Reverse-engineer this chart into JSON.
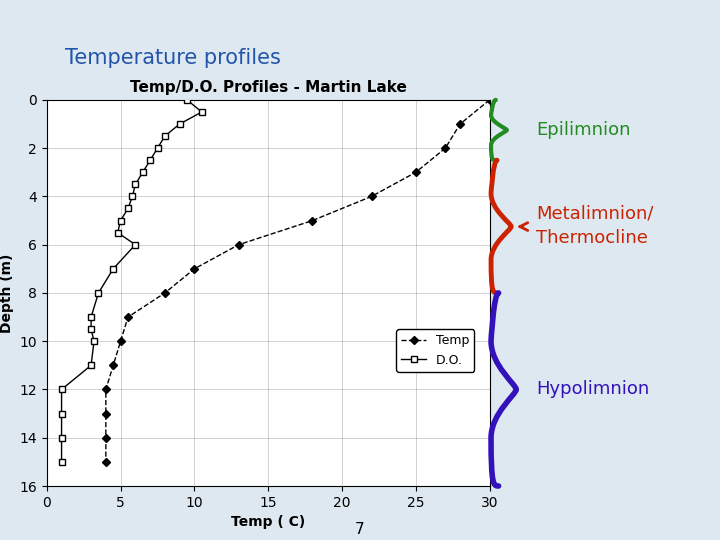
{
  "title": "Temp/D.O. Profiles - Martin Lake",
  "xlabel": "Temp ( C)",
  "ylabel": "Depth (m)",
  "xlim": [
    0,
    30
  ],
  "ylim": [
    16,
    0
  ],
  "xticks": [
    0,
    5,
    10,
    15,
    20,
    25,
    30
  ],
  "yticks": [
    0,
    2,
    4,
    6,
    8,
    10,
    12,
    14,
    16
  ],
  "temp_depth": [
    0,
    1,
    2,
    3,
    4,
    5,
    6,
    7,
    8,
    9,
    10,
    11,
    12,
    13,
    14,
    15
  ],
  "temp_values": [
    30,
    28,
    27,
    25,
    22,
    18,
    13,
    10,
    8,
    5.5,
    5,
    4.5,
    4,
    4,
    4,
    4
  ],
  "do_depth": [
    0,
    0.5,
    1,
    1.5,
    2,
    2.5,
    3,
    3.5,
    4,
    4.5,
    5,
    5.5,
    6,
    7,
    8,
    9,
    9.5,
    10,
    11,
    12,
    13,
    14,
    15
  ],
  "do_values": [
    9.5,
    10.5,
    9,
    8,
    7.5,
    7,
    6.5,
    6,
    5.8,
    5.5,
    5,
    4.8,
    6,
    4.5,
    3.5,
    3,
    3,
    3.2,
    3,
    1,
    1,
    1,
    1
  ],
  "bg_color": "#ffffff",
  "slide_bg": "#dde8f0",
  "title_color": "#2255aa",
  "slide_title": "Temperature profiles",
  "top_bar_color": "#8ab4d4",
  "accent_color": "#5566aa",
  "epilimnion_color": "#228b22",
  "metalimnion_color": "#cc2200",
  "hypolimnion_color": "#3311bb",
  "page_number": "7",
  "epi_depth_range": [
    0,
    2.5
  ],
  "meta_depth_range": [
    2.5,
    8
  ],
  "hypo_depth_range": [
    8,
    16
  ]
}
